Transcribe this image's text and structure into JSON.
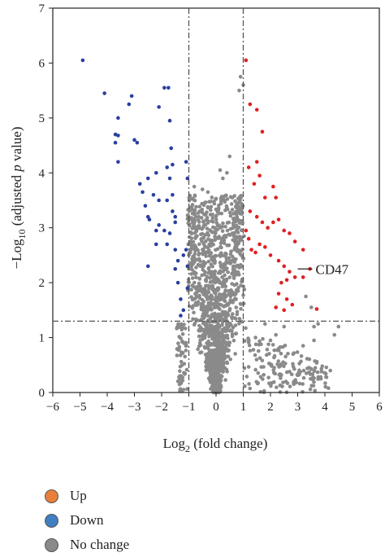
{
  "chart_data": {
    "type": "scatter",
    "xlabel": {
      "main": "Log",
      "sub": "2",
      "rest": " (fold change)"
    },
    "ylabel": {
      "pre": "−Log",
      "sub": "10",
      "mid": " (adjusted ",
      "ital": "p",
      "post": " value)"
    },
    "xlim": [
      -6,
      6
    ],
    "ylim": [
      0,
      7
    ],
    "xticks": [
      "−6",
      "−5",
      "−4",
      "−3",
      "−2",
      "−1",
      "0",
      "1",
      "2",
      "3",
      "4",
      "5",
      "6"
    ],
    "yticks": [
      "0",
      "1",
      "2",
      "3",
      "4",
      "5",
      "6",
      "7"
    ],
    "thresholds": {
      "x": [
        -1,
        1
      ],
      "y": 1.3
    },
    "annotation": {
      "text": "CD47",
      "x": 3.0,
      "y": 2.25
    },
    "series": [
      {
        "name": "Down",
        "color": "#2a3f9f",
        "points": [
          [
            -4.9,
            6.05
          ],
          [
            -4.1,
            5.45
          ],
          [
            -3.6,
            5.0
          ],
          [
            -3.7,
            4.7
          ],
          [
            -3.6,
            4.68
          ],
          [
            -3.7,
            4.55
          ],
          [
            -3.6,
            4.2
          ],
          [
            -3.2,
            5.25
          ],
          [
            -3.1,
            5.4
          ],
          [
            -3.0,
            4.6
          ],
          [
            -2.9,
            4.55
          ],
          [
            -2.8,
            3.8
          ],
          [
            -2.7,
            3.65
          ],
          [
            -2.6,
            3.4
          ],
          [
            -2.5,
            3.2
          ],
          [
            -2.45,
            3.15
          ],
          [
            -2.5,
            2.3
          ],
          [
            -2.5,
            3.9
          ],
          [
            -2.3,
            3.6
          ],
          [
            -2.2,
            2.95
          ],
          [
            -2.2,
            2.7
          ],
          [
            -2.2,
            4.0
          ],
          [
            -2.1,
            3.5
          ],
          [
            -2.1,
            3.05
          ],
          [
            -2.1,
            5.2
          ],
          [
            -1.9,
            5.55
          ],
          [
            -1.75,
            5.55
          ],
          [
            -1.7,
            4.95
          ],
          [
            -1.9,
            2.95
          ],
          [
            -1.8,
            2.7
          ],
          [
            -1.8,
            3.5
          ],
          [
            -1.8,
            4.1
          ],
          [
            -1.7,
            3.9
          ],
          [
            -1.65,
            4.45
          ],
          [
            -1.6,
            4.15
          ],
          [
            -1.6,
            3.3
          ],
          [
            -1.6,
            3.6
          ],
          [
            -1.5,
            3.1
          ],
          [
            -1.5,
            3.2
          ],
          [
            -1.5,
            2.6
          ],
          [
            -1.4,
            2.4
          ],
          [
            -1.5,
            2.25
          ],
          [
            -1.4,
            2.0
          ],
          [
            -1.3,
            1.7
          ],
          [
            -1.2,
            2.5
          ],
          [
            -1.1,
            2.6
          ],
          [
            -1.05,
            2.3
          ],
          [
            -1.2,
            1.5
          ],
          [
            -1.3,
            1.4
          ],
          [
            -1.05,
            1.9
          ],
          [
            -1.1,
            4.2
          ],
          [
            -1.05,
            3.9
          ],
          [
            -1.7,
            2.9
          ]
        ]
      },
      {
        "name": "Up",
        "color": "#e02020",
        "points": [
          [
            1.1,
            6.05
          ],
          [
            1.25,
            5.25
          ],
          [
            1.5,
            5.15
          ],
          [
            1.7,
            4.75
          ],
          [
            1.2,
            4.1
          ],
          [
            1.5,
            4.2
          ],
          [
            1.4,
            3.8
          ],
          [
            1.6,
            3.95
          ],
          [
            1.8,
            3.55
          ],
          [
            2.1,
            3.75
          ],
          [
            2.2,
            3.55
          ],
          [
            1.25,
            3.3
          ],
          [
            1.5,
            3.2
          ],
          [
            1.7,
            3.1
          ],
          [
            1.9,
            3.0
          ],
          [
            2.1,
            3.1
          ],
          [
            2.3,
            3.15
          ],
          [
            2.5,
            2.95
          ],
          [
            2.7,
            2.9
          ],
          [
            2.9,
            2.75
          ],
          [
            3.2,
            2.6
          ],
          [
            3.45,
            2.25
          ],
          [
            3.2,
            2.1
          ],
          [
            3.7,
            1.52
          ],
          [
            1.1,
            2.95
          ],
          [
            1.2,
            2.8
          ],
          [
            1.3,
            2.6
          ],
          [
            1.45,
            2.55
          ],
          [
            1.6,
            2.7
          ],
          [
            1.8,
            2.65
          ],
          [
            2.0,
            2.5
          ],
          [
            2.3,
            2.4
          ],
          [
            2.5,
            2.3
          ],
          [
            2.7,
            2.2
          ],
          [
            2.9,
            2.1
          ],
          [
            2.6,
            2.05
          ],
          [
            2.4,
            2.0
          ],
          [
            2.3,
            1.8
          ],
          [
            2.6,
            1.7
          ],
          [
            2.8,
            1.6
          ],
          [
            2.5,
            1.5
          ],
          [
            2.2,
            1.55
          ]
        ]
      },
      {
        "name": "No change",
        "color": "#8a8a8a",
        "points": [
          [
            0.9,
            5.75
          ],
          [
            0.85,
            5.5
          ],
          [
            1.0,
            5.6
          ],
          [
            0.5,
            4.3
          ],
          [
            0.15,
            4.05
          ],
          [
            0.25,
            3.9
          ],
          [
            0.4,
            4.0
          ],
          [
            -0.5,
            3.7
          ],
          [
            -0.8,
            3.75
          ],
          [
            -0.3,
            3.65
          ],
          [
            0.3,
            3.5
          ],
          [
            0.6,
            3.55
          ],
          [
            0.75,
            3.4
          ],
          [
            -0.6,
            3.3
          ],
          [
            3.3,
            1.75
          ],
          [
            3.5,
            1.55
          ],
          [
            3.6,
            1.2
          ],
          [
            3.75,
            1.25
          ],
          [
            3.6,
            0.95
          ],
          [
            3.2,
            0.85
          ],
          [
            4.5,
            1.2
          ],
          [
            4.35,
            1.05
          ],
          [
            2.5,
            1.2
          ],
          [
            2.2,
            1.05
          ],
          [
            1.8,
            1.25
          ],
          [
            2.0,
            0.95
          ],
          [
            2.3,
            0.8
          ],
          [
            -0.9,
            2.9
          ],
          [
            -0.7,
            2.85
          ],
          [
            -0.5,
            2.6
          ],
          [
            0.8,
            2.6
          ],
          [
            0.6,
            2.9
          ]
        ]
      }
    ],
    "legend": {
      "placement": "bottom-left",
      "entries": [
        {
          "label": "Up",
          "color": "#e8803c"
        },
        {
          "label": "Down",
          "color": "#3f7fc2"
        },
        {
          "label": "No change",
          "color": "#8a8a8a"
        }
      ]
    }
  }
}
